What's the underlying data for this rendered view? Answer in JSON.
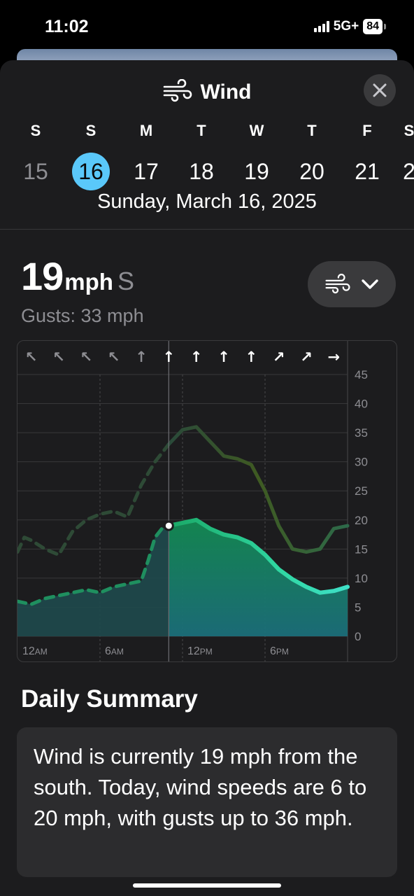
{
  "status": {
    "time": "11:02",
    "network": "5G+",
    "battery": "84"
  },
  "header": {
    "title": "Wind",
    "icon": "wind-icon",
    "close_icon": "close-icon"
  },
  "days": [
    {
      "dow": "S",
      "num": "15",
      "state": "past"
    },
    {
      "dow": "S",
      "num": "16",
      "state": "selected"
    },
    {
      "dow": "M",
      "num": "17",
      "state": "future"
    },
    {
      "dow": "T",
      "num": "18",
      "state": "future"
    },
    {
      "dow": "W",
      "num": "19",
      "state": "future"
    },
    {
      "dow": "T",
      "num": "20",
      "state": "future"
    },
    {
      "dow": "F",
      "num": "21",
      "state": "future"
    },
    {
      "dow": "S",
      "num": "2",
      "state": "future"
    }
  ],
  "selected_date": "Sunday, March 16, 2025",
  "current": {
    "speed": "19",
    "unit": "mph",
    "direction": "S",
    "gusts": "Gusts: 33 mph"
  },
  "picker": {
    "icon": "wind-icon",
    "chevron": "chevron-down-icon"
  },
  "chart_data": {
    "type": "area",
    "x_label_text": [
      "12AM",
      "6AM",
      "12PM",
      "6PM"
    ],
    "x_ticks_hours": [
      0,
      6,
      12,
      18
    ],
    "y_ticks": [
      0,
      5,
      10,
      15,
      20,
      25,
      30,
      35,
      40,
      45
    ],
    "ylim": [
      0,
      45
    ],
    "xlim_hours": [
      0,
      24
    ],
    "now_hour": 11,
    "direction_arrows": [
      "↖",
      "↖",
      "↖",
      "↖",
      "↑",
      "↑",
      "↑",
      "↑",
      "↑",
      "↗",
      "↗",
      "→"
    ],
    "series": [
      {
        "role": "wind",
        "color": "#2fd6a0",
        "points": [
          [
            0,
            6
          ],
          [
            1,
            5.5
          ],
          [
            2,
            6.5
          ],
          [
            3,
            7
          ],
          [
            4,
            7.5
          ],
          [
            5,
            8
          ],
          [
            6,
            7.5
          ],
          [
            7,
            8.5
          ],
          [
            8,
            9
          ],
          [
            9,
            9.5
          ],
          [
            9.5,
            13
          ],
          [
            10,
            17
          ],
          [
            10.5,
            18.5
          ],
          [
            11,
            19
          ],
          [
            12,
            19.5
          ],
          [
            13,
            20
          ],
          [
            14,
            18.5
          ],
          [
            15,
            17.5
          ],
          [
            16,
            17
          ],
          [
            17,
            16
          ],
          [
            18,
            14
          ],
          [
            19,
            11.5
          ],
          [
            20,
            9.8
          ],
          [
            21,
            8.5
          ],
          [
            22,
            7.5
          ],
          [
            23,
            7.8
          ],
          [
            24,
            8.5
          ]
        ]
      },
      {
        "role": "gusts",
        "color": "#3d5a2a",
        "points": [
          [
            0,
            14.5
          ],
          [
            0.5,
            17
          ],
          [
            1,
            16.5
          ],
          [
            2,
            15
          ],
          [
            3,
            14
          ],
          [
            3.5,
            16
          ],
          [
            4,
            18
          ],
          [
            5,
            20
          ],
          [
            6,
            21
          ],
          [
            7,
            21.5
          ],
          [
            8,
            20.5
          ],
          [
            9,
            26
          ],
          [
            10,
            30
          ],
          [
            11,
            33
          ],
          [
            12,
            35.5
          ],
          [
            13,
            36
          ],
          [
            14,
            33.5
          ],
          [
            15,
            31
          ],
          [
            16,
            30.5
          ],
          [
            17,
            29.5
          ],
          [
            18,
            25
          ],
          [
            19,
            19
          ],
          [
            20,
            15
          ],
          [
            21,
            14.5
          ],
          [
            22,
            15
          ],
          [
            23,
            18.5
          ],
          [
            24,
            19
          ]
        ]
      }
    ]
  },
  "summary": {
    "title": "Daily Summary",
    "text": "Wind is currently 19 mph from the south. Today, wind speeds are 6 to 20 mph, with gusts up to 36 mph."
  }
}
